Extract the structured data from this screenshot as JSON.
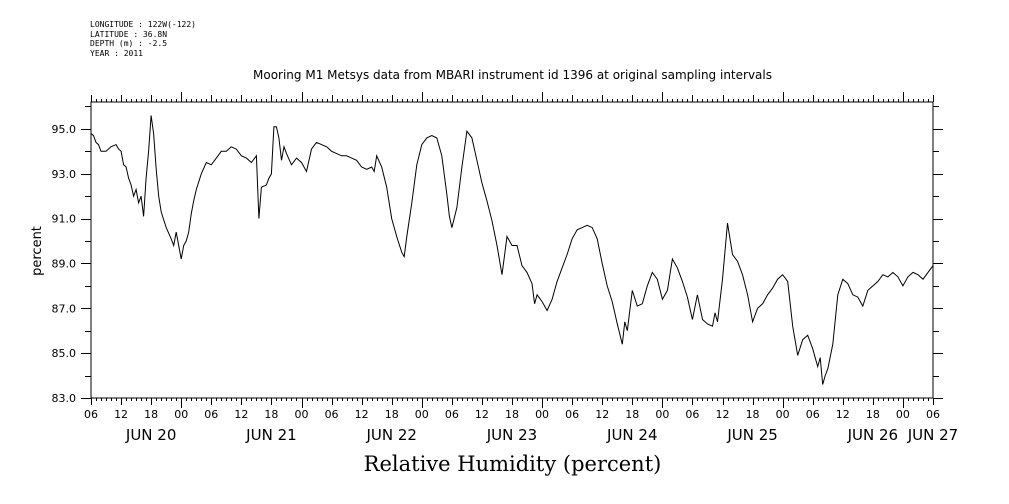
{
  "meta": {
    "longitude": "LONGITUDE : 122W(-122)",
    "latitude": "LATITUDE : 36.8N",
    "depth": "DEPTH (m) : -2.5",
    "year": "YEAR : 2011"
  },
  "chart_data": {
    "type": "line",
    "title": "Mooring M1 Metsys data from MBARI instrument id 1396 at original sampling intervals",
    "xlabel": "Relative Humidity (percent)",
    "ylabel": "percent",
    "ylim": [
      83.0,
      96.2
    ],
    "xlim_hours": [
      0,
      168
    ],
    "x_units": "hours since Jun 20 06:00, 2011",
    "yticks": [
      "83.0",
      "85.0",
      "87.0",
      "89.0",
      "91.0",
      "93.0",
      "95.0"
    ],
    "ytick_values": [
      83,
      85,
      87,
      89,
      91,
      93,
      95
    ],
    "hour_ticks": [
      "06",
      "12",
      "18",
      "00",
      "06",
      "12",
      "18",
      "00",
      "06",
      "12",
      "18",
      "00",
      "06",
      "12",
      "18",
      "00",
      "06",
      "12",
      "18",
      "00",
      "06",
      "12",
      "18",
      "00",
      "06",
      "12",
      "18",
      "00",
      "06"
    ],
    "day_labels": [
      {
        "label": "JUN 20",
        "hour": 12
      },
      {
        "label": "JUN 21",
        "hour": 36
      },
      {
        "label": "JUN 22",
        "hour": 60
      },
      {
        "label": "JUN 23",
        "hour": 84
      },
      {
        "label": "JUN 24",
        "hour": 108
      },
      {
        "label": "JUN 25",
        "hour": 132
      },
      {
        "label": "JUN 26",
        "hour": 156
      },
      {
        "label": "JUN 27",
        "hour": 168
      }
    ],
    "grid": false,
    "series": [
      {
        "values": [
          [
            0,
            94.8
          ],
          [
            0.5,
            94.7
          ],
          [
            1,
            94.4
          ],
          [
            1.5,
            94.3
          ],
          [
            2,
            94.0
          ],
          [
            2.5,
            94.0
          ],
          [
            3,
            94.0
          ],
          [
            4,
            94.2
          ],
          [
            5,
            94.3
          ],
          [
            5.5,
            94.1
          ],
          [
            6,
            94.0
          ],
          [
            6.5,
            93.4
          ],
          [
            7,
            93.3
          ],
          [
            7.5,
            92.8
          ],
          [
            8,
            92.5
          ],
          [
            8.5,
            92.0
          ],
          [
            9,
            92.3
          ],
          [
            9.5,
            91.7
          ],
          [
            10,
            92.0
          ],
          [
            10.5,
            91.1
          ],
          [
            11,
            92.8
          ],
          [
            11.5,
            94.0
          ],
          [
            12,
            95.6
          ],
          [
            12.5,
            94.8
          ],
          [
            13,
            93.2
          ],
          [
            13.5,
            92.0
          ],
          [
            14,
            91.3
          ],
          [
            15,
            90.6
          ],
          [
            16,
            90.1
          ],
          [
            16.5,
            89.8
          ],
          [
            17,
            90.4
          ],
          [
            18,
            89.2
          ],
          [
            18.5,
            89.8
          ],
          [
            19,
            90.0
          ],
          [
            19.5,
            90.4
          ],
          [
            20,
            91.2
          ],
          [
            20.5,
            91.8
          ],
          [
            21,
            92.3
          ],
          [
            22,
            93.0
          ],
          [
            23,
            93.5
          ],
          [
            24,
            93.4
          ],
          [
            25,
            93.7
          ],
          [
            26,
            94.0
          ],
          [
            27,
            94.0
          ],
          [
            28,
            94.2
          ],
          [
            29,
            94.1
          ],
          [
            30,
            93.8
          ],
          [
            31,
            93.7
          ],
          [
            32,
            93.5
          ],
          [
            33,
            93.8
          ],
          [
            33.5,
            91.0
          ],
          [
            34,
            92.4
          ],
          [
            35,
            92.5
          ],
          [
            35.5,
            92.8
          ],
          [
            36,
            93.0
          ],
          [
            36.5,
            95.1
          ],
          [
            37,
            95.1
          ],
          [
            37.5,
            94.6
          ],
          [
            38,
            93.6
          ],
          [
            38.5,
            94.2
          ],
          [
            39,
            93.9
          ],
          [
            40,
            93.4
          ],
          [
            41,
            93.7
          ],
          [
            42,
            93.5
          ],
          [
            43,
            93.1
          ],
          [
            44,
            94.1
          ],
          [
            45,
            94.4
          ],
          [
            46,
            94.3
          ],
          [
            47,
            94.2
          ],
          [
            48,
            94.0
          ],
          [
            49,
            93.9
          ],
          [
            50,
            93.8
          ],
          [
            51,
            93.8
          ],
          [
            52,
            93.7
          ],
          [
            53,
            93.6
          ],
          [
            54,
            93.3
          ],
          [
            55,
            93.2
          ],
          [
            56,
            93.3
          ],
          [
            56.5,
            93.1
          ],
          [
            57,
            93.8
          ],
          [
            58,
            93.3
          ],
          [
            59,
            92.4
          ],
          [
            60,
            91.0
          ],
          [
            61,
            90.2
          ],
          [
            62,
            89.5
          ],
          [
            62.5,
            89.3
          ],
          [
            63,
            90.2
          ],
          [
            64,
            91.7
          ],
          [
            65,
            93.4
          ],
          [
            66,
            94.3
          ],
          [
            67,
            94.6
          ],
          [
            68,
            94.7
          ],
          [
            69,
            94.6
          ],
          [
            70,
            93.8
          ],
          [
            71,
            92.1
          ],
          [
            71.5,
            91.1
          ],
          [
            72,
            90.6
          ],
          [
            73,
            91.5
          ],
          [
            74,
            93.3
          ],
          [
            75,
            94.9
          ],
          [
            76,
            94.6
          ],
          [
            77,
            93.6
          ],
          [
            78,
            92.6
          ],
          [
            79,
            91.8
          ],
          [
            80,
            90.9
          ],
          [
            81,
            89.8
          ],
          [
            82,
            88.5
          ],
          [
            83,
            90.2
          ],
          [
            84,
            89.8
          ],
          [
            85,
            89.8
          ],
          [
            86,
            88.9
          ],
          [
            87,
            88.6
          ],
          [
            88,
            88.1
          ],
          [
            88.5,
            87.2
          ],
          [
            89,
            87.6
          ],
          [
            90,
            87.3
          ],
          [
            91,
            86.9
          ],
          [
            92,
            87.4
          ],
          [
            93,
            88.2
          ],
          [
            94,
            88.8
          ],
          [
            95,
            89.4
          ],
          [
            96,
            90.1
          ],
          [
            97,
            90.5
          ],
          [
            98,
            90.6
          ],
          [
            99,
            90.7
          ],
          [
            100,
            90.6
          ],
          [
            101,
            90.1
          ],
          [
            102,
            89.0
          ],
          [
            103,
            88.0
          ],
          [
            104,
            87.3
          ],
          [
            105,
            86.3
          ],
          [
            106,
            85.4
          ],
          [
            106.5,
            86.4
          ],
          [
            107,
            86.0
          ],
          [
            108,
            87.8
          ],
          [
            109,
            87.1
          ],
          [
            110,
            87.2
          ],
          [
            111,
            88.0
          ],
          [
            112,
            88.6
          ],
          [
            113,
            88.3
          ],
          [
            114,
            87.4
          ],
          [
            115,
            87.8
          ],
          [
            116,
            89.2
          ],
          [
            117,
            88.8
          ],
          [
            118,
            88.2
          ],
          [
            119,
            87.5
          ],
          [
            120,
            86.5
          ],
          [
            121,
            87.6
          ],
          [
            122,
            86.5
          ],
          [
            123,
            86.3
          ],
          [
            124,
            86.2
          ],
          [
            124.5,
            86.8
          ],
          [
            125,
            86.4
          ],
          [
            126,
            88.3
          ],
          [
            127,
            90.8
          ],
          [
            128,
            89.4
          ],
          [
            129,
            89.1
          ],
          [
            130,
            88.5
          ],
          [
            131,
            87.6
          ],
          [
            132,
            86.4
          ],
          [
            133,
            87.0
          ],
          [
            134,
            87.2
          ],
          [
            135,
            87.6
          ],
          [
            136,
            87.9
          ],
          [
            137,
            88.3
          ],
          [
            138,
            88.5
          ],
          [
            139,
            88.2
          ],
          [
            140,
            86.2
          ],
          [
            141,
            84.9
          ],
          [
            142,
            85.6
          ],
          [
            143,
            85.8
          ],
          [
            144,
            85.2
          ],
          [
            145,
            84.4
          ],
          [
            145.5,
            84.8
          ],
          [
            146,
            83.6
          ],
          [
            146.5,
            84.0
          ],
          [
            147,
            84.3
          ],
          [
            148,
            85.4
          ],
          [
            149,
            87.6
          ],
          [
            150,
            88.3
          ],
          [
            151,
            88.1
          ],
          [
            152,
            87.6
          ],
          [
            153,
            87.5
          ],
          [
            154,
            87.1
          ],
          [
            155,
            87.8
          ],
          [
            156,
            88.0
          ],
          [
            157,
            88.2
          ],
          [
            158,
            88.5
          ],
          [
            159,
            88.4
          ],
          [
            160,
            88.6
          ],
          [
            161,
            88.4
          ],
          [
            162,
            88.0
          ],
          [
            163,
            88.4
          ],
          [
            164,
            88.6
          ],
          [
            165,
            88.5
          ],
          [
            166,
            88.3
          ],
          [
            167,
            88.6
          ],
          [
            168,
            88.9
          ]
        ]
      }
    ]
  }
}
